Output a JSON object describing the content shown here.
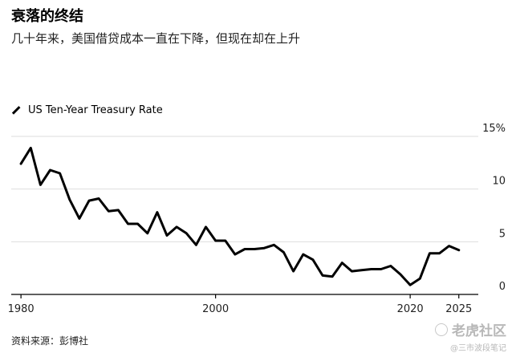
{
  "header": {
    "title": "衰落的终结",
    "subtitle": "几十年来，美国借贷成本一直在下降，但现在却在上升"
  },
  "footer": {
    "source": "资料来源：彭博社"
  },
  "watermark": {
    "main": "老虎社区",
    "sub": "@三市波段笔记",
    "icon": "tiger-logo-icon"
  },
  "colors": {
    "line": "#000000",
    "grid": "#dddddd",
    "axis": "#000000",
    "text": "#222222"
  },
  "chart_data": {
    "type": "line",
    "title": "衰落的终结",
    "subtitle": "几十年来，美国借贷成本一直在下降，但现在却在上升",
    "xlabel": "",
    "ylabel": "",
    "xlim": [
      1979,
      2027
    ],
    "ylim": [
      0,
      15
    ],
    "grid": true,
    "legend_position": "top-left",
    "x_ticks": [
      1980,
      2000,
      2020,
      2025
    ],
    "x_tick_labels": [
      "1980",
      "2000",
      "2020",
      "2025"
    ],
    "y_ticks": [
      0,
      5,
      10,
      15
    ],
    "y_tick_labels": [
      "0",
      "5",
      "10",
      "15%"
    ],
    "series": [
      {
        "name": "US Ten-Year Treasury Rate",
        "x": [
          1980,
          1981,
          1982,
          1983,
          1984,
          1985,
          1986,
          1987,
          1988,
          1989,
          1990,
          1991,
          1992,
          1993,
          1994,
          1995,
          1996,
          1997,
          1998,
          1999,
          2000,
          2001,
          2002,
          2003,
          2004,
          2005,
          2006,
          2007,
          2008,
          2009,
          2010,
          2011,
          2012,
          2013,
          2014,
          2015,
          2016,
          2017,
          2018,
          2019,
          2020,
          2021,
          2022,
          2023,
          2024,
          2025
        ],
        "values": [
          12.4,
          13.9,
          10.4,
          11.8,
          11.5,
          9.0,
          7.2,
          8.9,
          9.1,
          7.9,
          8.0,
          6.7,
          6.7,
          5.8,
          7.8,
          5.6,
          6.4,
          5.8,
          4.7,
          6.4,
          5.1,
          5.1,
          3.8,
          4.3,
          4.3,
          4.4,
          4.7,
          4.0,
          2.2,
          3.8,
          3.3,
          1.8,
          1.7,
          3.0,
          2.2,
          2.3,
          2.4,
          2.4,
          2.7,
          1.9,
          0.9,
          1.5,
          3.9,
          3.9,
          4.6,
          4.2
        ]
      }
    ]
  }
}
